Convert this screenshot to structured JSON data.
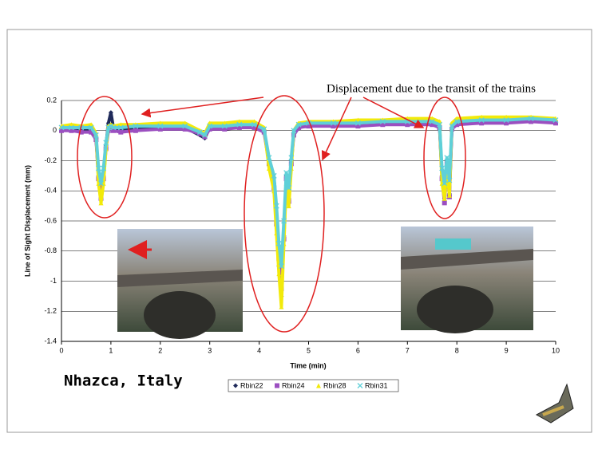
{
  "chart_data": {
    "type": "line",
    "annotation": "Displacement due to the transit of the trains",
    "xlabel": "Time (min)",
    "ylabel": "Line of Sight Displacement (mm)",
    "x": [
      0,
      0.2,
      0.4,
      0.6,
      0.7,
      0.75,
      0.8,
      0.85,
      0.9,
      0.95,
      1.0,
      1.05,
      1.2,
      1.5,
      2.0,
      2.5,
      2.8,
      2.9,
      3.0,
      3.3,
      3.6,
      3.9,
      4.1,
      4.2,
      4.3,
      4.35,
      4.4,
      4.45,
      4.5,
      4.55,
      4.6,
      4.65,
      4.7,
      4.8,
      5.0,
      5.5,
      6.0,
      6.5,
      7.0,
      7.5,
      7.65,
      7.7,
      7.75,
      7.8,
      7.85,
      7.9,
      8.0,
      8.5,
      9.0,
      9.5,
      10.0
    ],
    "series": [
      {
        "name": "Rbin22",
        "color": "#1f2a5a",
        "marker": "diamond",
        "values": [
          0.01,
          0.01,
          0.0,
          0.0,
          -0.05,
          -0.3,
          -0.42,
          -0.3,
          -0.1,
          0.05,
          0.12,
          0.02,
          0.0,
          0.01,
          0.02,
          0.02,
          -0.03,
          -0.05,
          0.02,
          0.02,
          0.03,
          0.03,
          0.0,
          -0.2,
          -0.35,
          -0.6,
          -0.9,
          -1.1,
          -0.7,
          -0.3,
          -0.45,
          -0.2,
          -0.02,
          0.03,
          0.04,
          0.04,
          0.04,
          0.05,
          0.05,
          0.05,
          0.03,
          -0.3,
          -0.45,
          -0.2,
          -0.42,
          0.02,
          0.05,
          0.06,
          0.06,
          0.07,
          0.06
        ]
      },
      {
        "name": "Rbin24",
        "color": "#9b4fc0",
        "marker": "square",
        "values": [
          0.0,
          0.0,
          -0.01,
          -0.01,
          -0.06,
          -0.32,
          -0.45,
          -0.32,
          -0.12,
          0.0,
          0.02,
          0.0,
          -0.01,
          0.0,
          0.01,
          0.01,
          -0.02,
          -0.04,
          0.01,
          0.01,
          0.02,
          0.02,
          -0.01,
          -0.22,
          -0.38,
          -0.62,
          -0.85,
          -1.05,
          -0.72,
          -0.32,
          -0.47,
          -0.22,
          -0.03,
          0.02,
          0.03,
          0.03,
          0.03,
          0.04,
          0.04,
          0.04,
          0.02,
          -0.32,
          -0.48,
          -0.22,
          -0.44,
          0.01,
          0.04,
          0.05,
          0.05,
          0.06,
          0.05
        ]
      },
      {
        "name": "Rbin28",
        "color": "#f2ea0a",
        "marker": "triangle",
        "values": [
          0.03,
          0.04,
          0.03,
          0.04,
          -0.02,
          -0.35,
          -0.48,
          -0.35,
          -0.12,
          0.03,
          0.04,
          0.03,
          0.04,
          0.04,
          0.05,
          0.05,
          0.0,
          -0.02,
          0.05,
          0.05,
          0.06,
          0.06,
          0.02,
          -0.25,
          -0.4,
          -0.68,
          -0.95,
          -1.17,
          -0.75,
          -0.35,
          -0.5,
          -0.25,
          0.0,
          0.05,
          0.06,
          0.06,
          0.07,
          0.07,
          0.08,
          0.08,
          0.06,
          -0.35,
          -0.45,
          -0.25,
          -0.43,
          0.05,
          0.08,
          0.09,
          0.09,
          0.09,
          0.08
        ]
      },
      {
        "name": "Rbin31",
        "color": "#5fd0d8",
        "marker": "x",
        "values": [
          0.02,
          0.02,
          0.02,
          0.02,
          -0.03,
          -0.25,
          -0.35,
          -0.25,
          -0.08,
          0.02,
          0.03,
          0.02,
          0.02,
          0.03,
          0.03,
          0.03,
          -0.01,
          -0.03,
          0.03,
          0.03,
          0.04,
          0.04,
          0.01,
          -0.18,
          -0.3,
          -0.5,
          -0.75,
          -0.9,
          -0.6,
          -0.28,
          -0.38,
          -0.18,
          0.0,
          0.04,
          0.05,
          0.05,
          0.05,
          0.06,
          0.06,
          0.06,
          0.04,
          -0.25,
          -0.35,
          -0.18,
          -0.33,
          0.03,
          0.06,
          0.07,
          0.07,
          0.08,
          0.07
        ]
      }
    ],
    "xlim": [
      0,
      10
    ],
    "xticks": [
      0,
      1,
      2,
      3,
      4,
      5,
      6,
      7,
      8,
      9,
      10
    ],
    "ylim": [
      -1.4,
      0.2
    ],
    "yticks": [
      0.2,
      0,
      -0.2,
      -0.4,
      -0.6,
      -0.8,
      -1,
      -1.2,
      -1.4
    ],
    "grid": true,
    "legend": "bottom"
  },
  "slide": {
    "caption": "Nhazca, Italy"
  }
}
